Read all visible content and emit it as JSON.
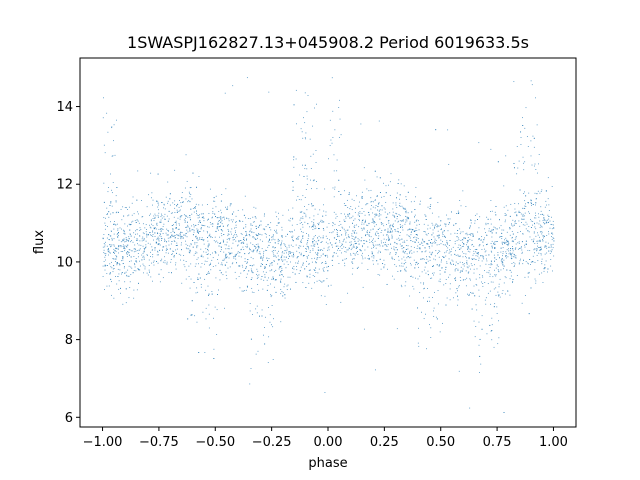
{
  "chart_data": {
    "type": "scatter",
    "title": "1SWASPJ162827.13+045908.2 Period 6019633.5s",
    "xlabel": "phase",
    "ylabel": "flux",
    "xlim": [
      -1.1,
      1.1
    ],
    "ylim": [
      5.75,
      15.25
    ],
    "xticks": [
      -1.0,
      -0.75,
      -0.5,
      -0.25,
      0.0,
      0.25,
      0.5,
      0.75,
      1.0
    ],
    "xtick_labels": [
      "−1.00",
      "−0.75",
      "−0.50",
      "−0.25",
      "0.00",
      "0.25",
      "0.50",
      "0.75",
      "1.00"
    ],
    "yticks": [
      6,
      8,
      10,
      12,
      14
    ],
    "ytick_labels": [
      "6",
      "8",
      "10",
      "12",
      "14"
    ],
    "grid": false,
    "marker_color": "#1f77b4",
    "series": [
      {
        "x_range": [
          -1.0,
          1.0
        ],
        "baseline_flux": 10.5,
        "typical_spread": [
          9.0,
          12.0
        ],
        "outlier_range": [
          6.0,
          15.0
        ],
        "peak_phases": [
          -0.97,
          -0.13,
          -0.08,
          0.03,
          0.85,
          0.91
        ],
        "dip_phases": [
          -0.55,
          -0.3,
          0.45,
          0.7
        ]
      }
    ]
  }
}
